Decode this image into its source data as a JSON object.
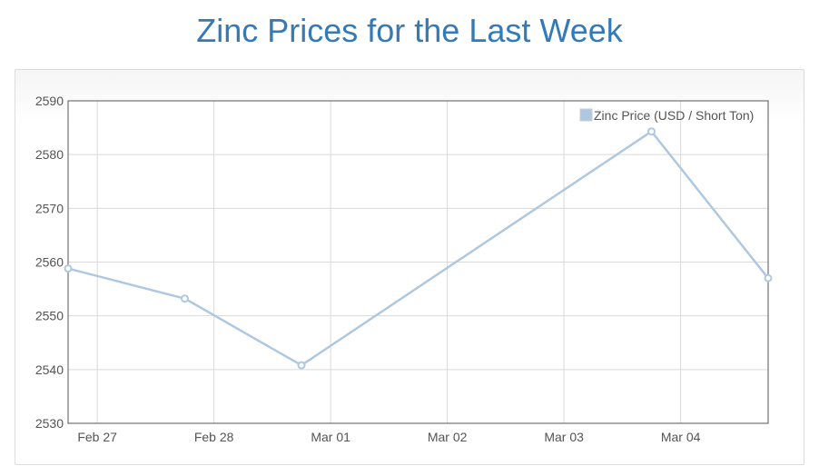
{
  "page": {
    "title": "Zinc Prices for the Last Week"
  },
  "chart_data": {
    "type": "line",
    "title": "Zinc Prices for the Last Week",
    "xlabel": "",
    "ylabel": "",
    "x_ticks": [
      "Feb 27",
      "Feb 28",
      "Mar 01",
      "Mar 02",
      "Mar 03",
      "Mar 04"
    ],
    "y_ticks": [
      2530,
      2540,
      2550,
      2560,
      2570,
      2580,
      2590
    ],
    "ylim": [
      2530,
      2590
    ],
    "xlim": [
      "2015-02-26 18:00",
      "2015-03-04 18:00"
    ],
    "grid": true,
    "legend_position": "top-right",
    "colors": {
      "series": "#afc8e1",
      "title": "#337ab7"
    },
    "series": [
      {
        "name": "Zinc Price (USD / Short Ton)",
        "points": [
          {
            "x": "2015-02-26 18:00",
            "y": 2558.8
          },
          {
            "x": "2015-02-27 18:00",
            "y": 2553.2
          },
          {
            "x": "2015-02-28 18:00",
            "y": 2540.8
          },
          {
            "x": "2015-03-03 18:00",
            "y": 2584.3
          },
          {
            "x": "2015-03-04 18:00",
            "y": 2557.0
          }
        ]
      }
    ]
  }
}
